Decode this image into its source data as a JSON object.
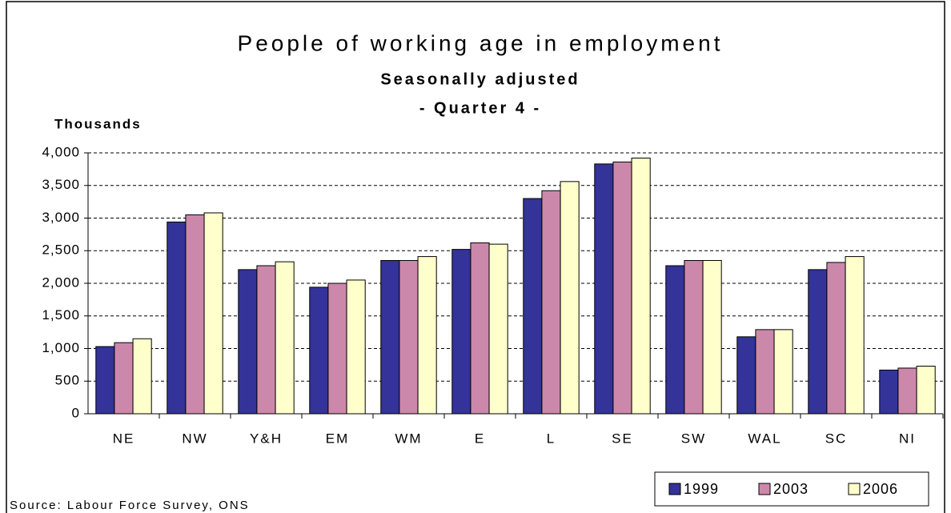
{
  "chart_data": {
    "type": "bar",
    "title": "People of working age in employment",
    "subtitle": "Seasonally adjusted",
    "period": "- Quarter 4 -",
    "y_label": "Thousands",
    "source": "Source: Labour Force Survey, ONS",
    "categories": [
      "NE",
      "NW",
      "Y&H",
      "EM",
      "WM",
      "E",
      "L",
      "SE",
      "SW",
      "WAL",
      "SC",
      "NI"
    ],
    "series": [
      {
        "name": "1999",
        "color": "#333399",
        "values": [
          1030,
          2940,
          2210,
          1940,
          2350,
          2520,
          3300,
          3830,
          2270,
          1180,
          2210,
          670
        ]
      },
      {
        "name": "2003",
        "color": "#cc88aa",
        "values": [
          1090,
          3050,
          2270,
          2000,
          2350,
          2620,
          3420,
          3860,
          2350,
          1290,
          2320,
          700
        ]
      },
      {
        "name": "2006",
        "color": "#ffffcc",
        "values": [
          1150,
          3080,
          2330,
          2050,
          2410,
          2600,
          3560,
          3920,
          2350,
          1290,
          2410,
          730
        ]
      }
    ],
    "ylim": [
      0,
      4000
    ],
    "yticks": [
      0,
      500,
      {
        "value": 1000,
        "label": "1,000"
      },
      {
        "value": 1500,
        "label": "1,500"
      },
      {
        "value": 2000,
        "label": "2,000"
      },
      {
        "value": 2500,
        "label": "2,500"
      },
      {
        "value": 3000,
        "label": "3,000"
      },
      {
        "value": 3500,
        "label": "3,500"
      },
      {
        "value": 4000,
        "label": "4,000"
      }
    ],
    "grid": true,
    "legend": "bottom-right"
  }
}
